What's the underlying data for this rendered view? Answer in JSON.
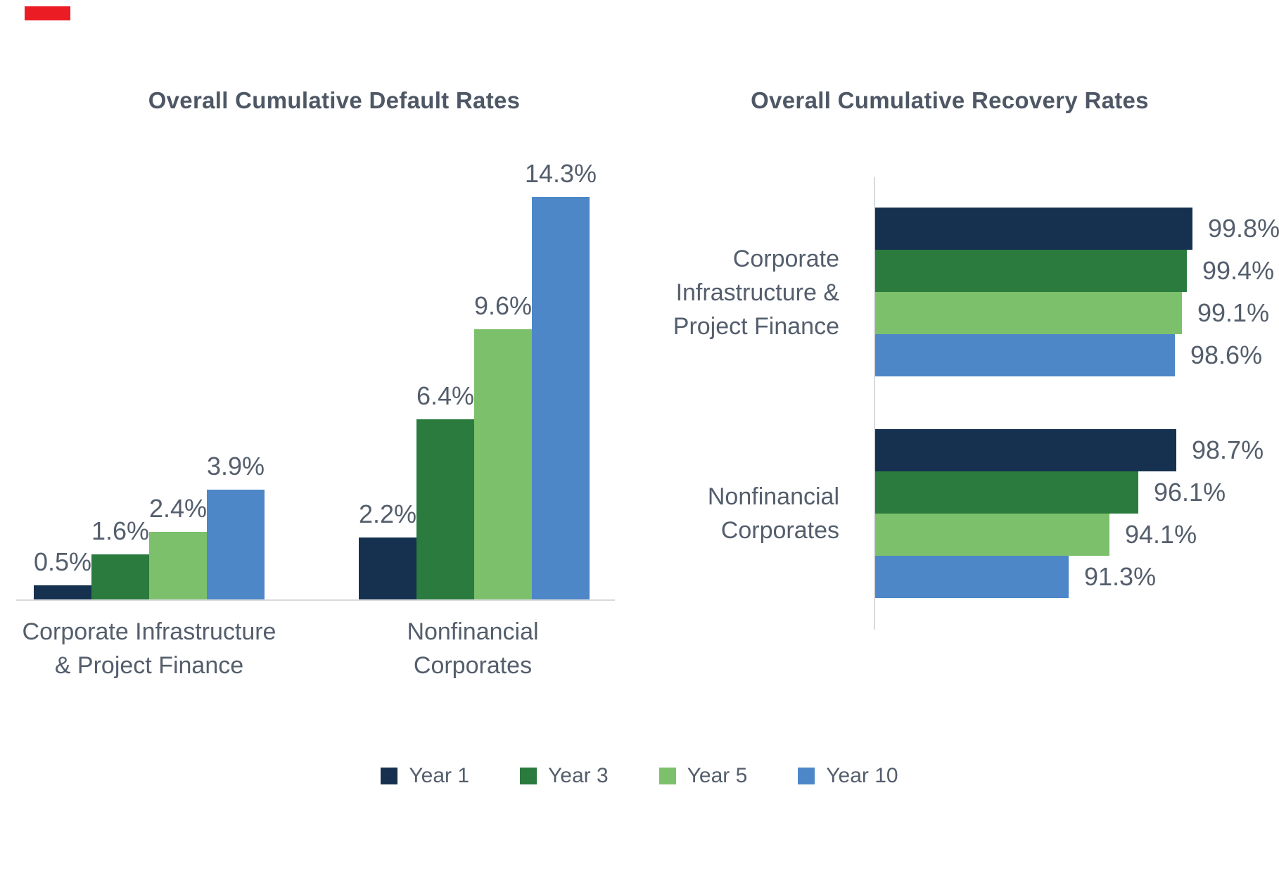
{
  "background": "#ffffff",
  "text_color": "#545E6C",
  "marker": {
    "color": "#EC1C24"
  },
  "legend": {
    "position": "bottom",
    "items": [
      {
        "label": "Year 1",
        "color": "#15314F"
      },
      {
        "label": "Year 3",
        "color": "#2A7B3D"
      },
      {
        "label": "Year 5",
        "color": "#7DC06B"
      },
      {
        "label": "Year 10",
        "color": "#4D87C8"
      }
    ]
  },
  "chart_data": [
    {
      "type": "bar",
      "orientation": "vertical",
      "title": "Overall Cumulative Default Rates",
      "categories": [
        "Corporate Infrastructure & Project Finance",
        "Nonfinancial Corporates"
      ],
      "category_label_lines": [
        [
          "Corporate Infrastructure",
          "& Project Finance"
        ],
        [
          "Nonfinancial",
          "Corporates"
        ]
      ],
      "series": [
        {
          "name": "Year 1",
          "color": "#15314F",
          "values": [
            0.5,
            2.2
          ]
        },
        {
          "name": "Year 3",
          "color": "#2A7B3D",
          "values": [
            1.6,
            6.4
          ]
        },
        {
          "name": "Year 5",
          "color": "#7DC06B",
          "values": [
            2.4,
            9.6
          ]
        },
        {
          "name": "Year 10",
          "color": "#4D87C8",
          "values": [
            3.9,
            14.3
          ]
        }
      ],
      "value_label_format": "0.0%",
      "ylim": [
        0,
        15
      ],
      "axis_labels_visible": false,
      "grid": false,
      "legend_position": "bottom"
    },
    {
      "type": "bar",
      "orientation": "horizontal",
      "title": "Overall Cumulative Recovery Rates",
      "categories": [
        "Corporate Infrastructure & Project Finance",
        "Nonfinancial Corporates"
      ],
      "category_label_lines": [
        [
          "Corporate",
          "Infrastructure &",
          "Project Finance"
        ],
        [
          "Nonfinancial",
          "Corporates"
        ]
      ],
      "series": [
        {
          "name": "Year 1",
          "color": "#15314F",
          "values": [
            99.8,
            98.7
          ]
        },
        {
          "name": "Year 3",
          "color": "#2A7B3D",
          "values": [
            99.4,
            96.1
          ]
        },
        {
          "name": "Year 5",
          "color": "#7DC06B",
          "values": [
            99.1,
            94.1
          ]
        },
        {
          "name": "Year 10",
          "color": "#4D87C8",
          "values": [
            98.6,
            91.3
          ]
        }
      ],
      "value_label_format": "0.0%",
      "xlim": [
        78,
        100
      ],
      "axis_labels_visible": false,
      "grid": false,
      "legend_position": "bottom"
    }
  ]
}
